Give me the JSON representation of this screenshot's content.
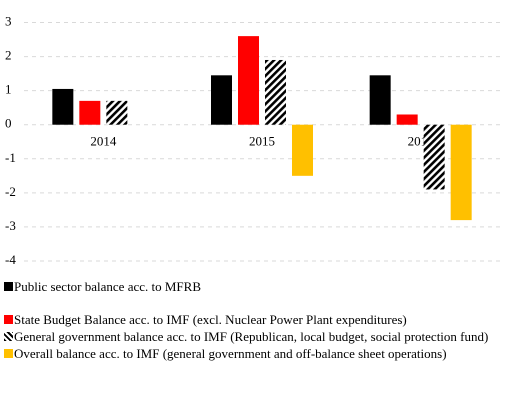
{
  "chart_data": {
    "type": "bar",
    "categories": [
      "2014",
      "2015",
      "2016"
    ],
    "series": [
      {
        "name": "Public sector balance acc. to MFRB",
        "color": "#000000",
        "values": [
          1.05,
          1.45,
          1.45
        ]
      },
      {
        "name": "State Budget Balance acc. to IMF (excl. Nuclear Power Plant expenditures)",
        "color": "#ff0000",
        "values": [
          0.7,
          2.6,
          0.3
        ]
      },
      {
        "name": "General government balance acc. to IMF (Republican, local budget, social protection fund)",
        "color": "#000000",
        "pattern": "hatch",
        "values": [
          0.7,
          1.9,
          -1.9
        ]
      },
      {
        "name": "Overall balance acc. to IMF (general government and off-balance sheet operations)",
        "color": "#ffc000",
        "values": [
          null,
          -1.5,
          -2.8
        ]
      }
    ],
    "ylim": [
      -4,
      3
    ],
    "yticks": [
      -4,
      -3,
      -2,
      -1,
      0,
      1,
      2,
      3
    ],
    "grid": true,
    "legend": "bottom"
  }
}
